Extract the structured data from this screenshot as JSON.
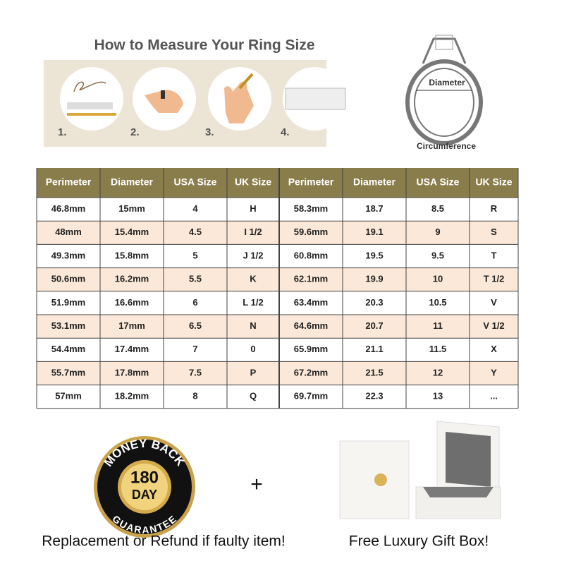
{
  "header": {
    "title": "How to Measure Your Ring Size",
    "steps": [
      "1.",
      "2.",
      "3.",
      "4."
    ]
  },
  "ring_diagram": {
    "diameter": "Diameter",
    "circumference": "Circumference"
  },
  "table": {
    "columns": [
      "Perimeter",
      "Diameter",
      "USA Size",
      "UK Size",
      "Perimeter",
      "Diameter",
      "USA Size",
      "UK Size"
    ],
    "rows": [
      [
        "46.8mm",
        "15mm",
        "4",
        "H",
        "58.3mm",
        "18.7",
        "8.5",
        "R"
      ],
      [
        "48mm",
        "15.4mm",
        "4.5",
        "I 1/2",
        "59.6mm",
        "19.1",
        "9",
        "S"
      ],
      [
        "49.3mm",
        "15.8mm",
        "5",
        "J 1/2",
        "60.8mm",
        "19.5",
        "9.5",
        "T"
      ],
      [
        "50.6mm",
        "16.2mm",
        "5.5",
        "K",
        "62.1mm",
        "19.9",
        "10",
        "T 1/2"
      ],
      [
        "51.9mm",
        "16.6mm",
        "6",
        "L 1/2",
        "63.4mm",
        "20.3",
        "10.5",
        "V"
      ],
      [
        "53.1mm",
        "17mm",
        "6.5",
        "N",
        "64.6mm",
        "20.7",
        "11",
        "V 1/2"
      ],
      [
        "54.4mm",
        "17.4mm",
        "7",
        "0",
        "65.9mm",
        "21.1",
        "11.5",
        "X"
      ],
      [
        "55.7mm",
        "17.8mm",
        "7.5",
        "P",
        "67.2mm",
        "21.5",
        "12",
        "Y"
      ],
      [
        "57mm",
        "18.2mm",
        "8",
        "Q",
        "69.7mm",
        "22.3",
        "13",
        "..."
      ]
    ]
  },
  "badge": {
    "top": "MONEY BACK",
    "number": "180",
    "unit": "DAY",
    "bottom": "GUARANTEE",
    "caption": "Replacement or Refund if faulty item!"
  },
  "plus": "+",
  "gift": {
    "caption": "Free Luxury Gift Box!"
  }
}
